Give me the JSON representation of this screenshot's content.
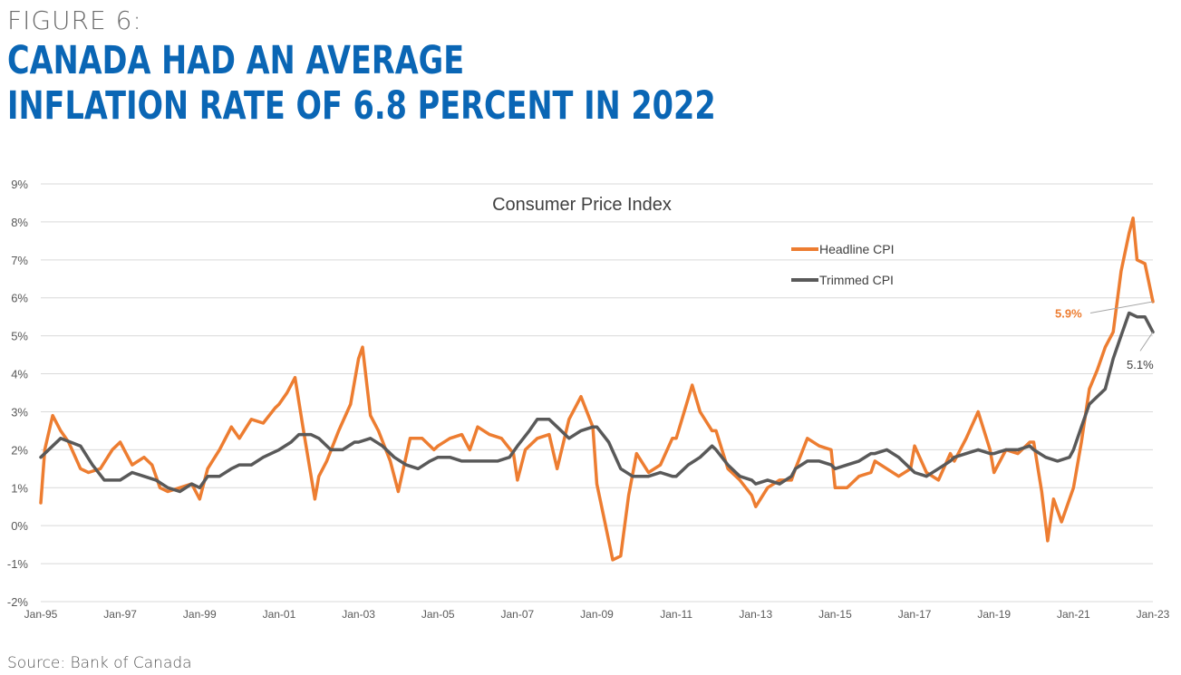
{
  "figure_label": "FIGURE 6:",
  "headline": {
    "line1": "CANADA HAD AN AVERAGE",
    "line2": "INFLATION RATE OF 6.8 PERCENT IN 2022"
  },
  "source": "Source: Bank of Canada",
  "colors": {
    "headline_blue": "#0a66b5",
    "headline_cpi": "#ed7d31",
    "trimmed_cpi": "#595959",
    "grid": "#d9d9d9"
  },
  "chart_data": {
    "type": "line",
    "title": "Consumer Price Index",
    "xlabel": "",
    "ylabel": "",
    "x_range": [
      1995,
      2023
    ],
    "ylim": [
      -2,
      9
    ],
    "y_ticks": [
      -2,
      -1,
      0,
      1,
      2,
      3,
      4,
      5,
      6,
      7,
      8,
      9
    ],
    "y_tick_labels": [
      "-2%",
      "-1%",
      "0%",
      "1%",
      "2%",
      "3%",
      "4%",
      "5%",
      "6%",
      "7%",
      "8%",
      "9%"
    ],
    "x_ticks": [
      1995,
      1997,
      1999,
      2001,
      2003,
      2005,
      2007,
      2009,
      2011,
      2013,
      2015,
      2017,
      2019,
      2021,
      2023
    ],
    "x_tick_labels": [
      "Jan-95",
      "Jan-97",
      "Jan-99",
      "Jan-01",
      "Jan-03",
      "Jan-05",
      "Jan-07",
      "Jan-09",
      "Jan-11",
      "Jan-13",
      "Jan-15",
      "Jan-17",
      "Jan-19",
      "Jan-21",
      "Jan-23"
    ],
    "grid": "horizontal",
    "legend_position": "top-right",
    "series": [
      {
        "name": "Headline CPI",
        "color": "#ed7d31",
        "x": [
          1995.0,
          1995.1,
          1995.3,
          1995.5,
          1995.7,
          1996.0,
          1996.2,
          1996.5,
          1996.8,
          1997.0,
          1997.3,
          1997.6,
          1997.8,
          1998.0,
          1998.2,
          1998.5,
          1998.8,
          1999.0,
          1999.2,
          1999.5,
          1999.8,
          2000.0,
          2000.3,
          2000.6,
          2000.9,
          2001.0,
          2001.2,
          2001.4,
          2001.6,
          2001.9,
          2002.0,
          2002.2,
          2002.5,
          2002.8,
          2003.0,
          2003.1,
          2003.3,
          2003.5,
          2003.8,
          2004.0,
          2004.3,
          2004.6,
          2004.9,
          2005.0,
          2005.3,
          2005.6,
          2005.8,
          2006.0,
          2006.3,
          2006.6,
          2006.9,
          2007.0,
          2007.2,
          2007.5,
          2007.8,
          2008.0,
          2008.3,
          2008.6,
          2008.9,
          2009.0,
          2009.2,
          2009.4,
          2009.6,
          2009.8,
          2010.0,
          2010.3,
          2010.6,
          2010.9,
          2011.0,
          2011.2,
          2011.4,
          2011.6,
          2011.9,
          2012.0,
          2012.3,
          2012.6,
          2012.9,
          2013.0,
          2013.3,
          2013.6,
          2013.9,
          2014.0,
          2014.3,
          2014.6,
          2014.9,
          2015.0,
          2015.3,
          2015.6,
          2015.9,
          2016.0,
          2016.3,
          2016.6,
          2016.9,
          2017.0,
          2017.3,
          2017.6,
          2017.9,
          2018.0,
          2018.3,
          2018.6,
          2018.9,
          2019.0,
          2019.3,
          2019.6,
          2019.9,
          2020.0,
          2020.2,
          2020.35,
          2020.5,
          2020.7,
          2020.9,
          2021.0,
          2021.2,
          2021.4,
          2021.6,
          2021.8,
          2022.0,
          2022.2,
          2022.4,
          2022.5,
          2022.6,
          2022.8,
          2023.0
        ],
        "y": [
          0.6,
          2.0,
          2.9,
          2.5,
          2.2,
          1.5,
          1.4,
          1.5,
          2.0,
          2.2,
          1.6,
          1.8,
          1.6,
          1.0,
          0.9,
          1.0,
          1.1,
          0.7,
          1.5,
          2.0,
          2.6,
          2.3,
          2.8,
          2.7,
          3.1,
          3.2,
          3.5,
          3.9,
          2.6,
          0.7,
          1.3,
          1.7,
          2.5,
          3.2,
          4.4,
          4.7,
          2.9,
          2.5,
          1.7,
          0.9,
          2.3,
          2.3,
          2.0,
          2.1,
          2.3,
          2.4,
          2.0,
          2.6,
          2.4,
          2.3,
          1.9,
          1.2,
          2.0,
          2.3,
          2.4,
          1.5,
          2.8,
          3.4,
          2.6,
          1.1,
          0.1,
          -0.9,
          -0.8,
          0.8,
          1.9,
          1.4,
          1.6,
          2.3,
          2.3,
          3.0,
          3.7,
          3.0,
          2.5,
          2.5,
          1.5,
          1.2,
          0.8,
          0.5,
          1.0,
          1.2,
          1.2,
          1.5,
          2.3,
          2.1,
          2.0,
          1.0,
          1.0,
          1.3,
          1.4,
          1.7,
          1.5,
          1.3,
          1.5,
          2.1,
          1.4,
          1.2,
          1.9,
          1.7,
          2.3,
          3.0,
          2.0,
          1.4,
          2.0,
          1.9,
          2.2,
          2.2,
          0.9,
          -0.4,
          0.7,
          0.1,
          0.7,
          1.0,
          2.2,
          3.6,
          4.1,
          4.7,
          5.1,
          6.7,
          7.7,
          8.1,
          7.0,
          6.9,
          5.9
        ]
      },
      {
        "name": "Trimmed CPI",
        "color": "#595959",
        "x": [
          1995.0,
          1995.3,
          1995.5,
          1996.0,
          1996.3,
          1996.6,
          1997.0,
          1997.3,
          1997.6,
          1997.9,
          1998.2,
          1998.5,
          1998.8,
          1999.0,
          1999.2,
          1999.5,
          1999.8,
          2000.0,
          2000.3,
          2000.6,
          2001.0,
          2001.3,
          2001.5,
          2001.8,
          2002.0,
          2002.3,
          2002.6,
          2002.9,
          2003.0,
          2003.3,
          2003.6,
          2003.9,
          2004.2,
          2004.5,
          2004.8,
          2005.0,
          2005.3,
          2005.6,
          2005.9,
          2006.2,
          2006.5,
          2006.8,
          2007.0,
          2007.3,
          2007.5,
          2007.8,
          2008.0,
          2008.3,
          2008.6,
          2008.9,
          2009.0,
          2009.3,
          2009.6,
          2009.9,
          2010.0,
          2010.3,
          2010.6,
          2010.9,
          2011.0,
          2011.3,
          2011.6,
          2011.9,
          2012.0,
          2012.3,
          2012.6,
          2012.9,
          2013.0,
          2013.3,
          2013.6,
          2013.9,
          2014.0,
          2014.3,
          2014.6,
          2014.9,
          2015.0,
          2015.3,
          2015.6,
          2015.9,
          2016.0,
          2016.3,
          2016.6,
          2016.9,
          2017.0,
          2017.3,
          2017.6,
          2017.9,
          2018.0,
          2018.3,
          2018.6,
          2018.9,
          2019.0,
          2019.3,
          2019.6,
          2019.9,
          2020.0,
          2020.3,
          2020.6,
          2020.9,
          2021.0,
          2021.2,
          2021.4,
          2021.6,
          2021.8,
          2022.0,
          2022.2,
          2022.4,
          2022.6,
          2022.8,
          2023.0
        ],
        "y": [
          1.8,
          2.1,
          2.3,
          2.1,
          1.6,
          1.2,
          1.2,
          1.4,
          1.3,
          1.2,
          1.0,
          0.9,
          1.1,
          1.0,
          1.3,
          1.3,
          1.5,
          1.6,
          1.6,
          1.8,
          2.0,
          2.2,
          2.4,
          2.4,
          2.3,
          2.0,
          2.0,
          2.2,
          2.2,
          2.3,
          2.1,
          1.8,
          1.6,
          1.5,
          1.7,
          1.8,
          1.8,
          1.7,
          1.7,
          1.7,
          1.7,
          1.8,
          2.1,
          2.5,
          2.8,
          2.8,
          2.6,
          2.3,
          2.5,
          2.6,
          2.6,
          2.2,
          1.5,
          1.3,
          1.3,
          1.3,
          1.4,
          1.3,
          1.3,
          1.6,
          1.8,
          2.1,
          2.0,
          1.6,
          1.3,
          1.2,
          1.1,
          1.2,
          1.1,
          1.3,
          1.5,
          1.7,
          1.7,
          1.6,
          1.5,
          1.6,
          1.7,
          1.9,
          1.9,
          2.0,
          1.8,
          1.5,
          1.4,
          1.3,
          1.5,
          1.7,
          1.8,
          1.9,
          2.0,
          1.9,
          1.9,
          2.0,
          2.0,
          2.1,
          2.0,
          1.8,
          1.7,
          1.8,
          2.0,
          2.6,
          3.2,
          3.4,
          3.6,
          4.4,
          5.0,
          5.6,
          5.5,
          5.5,
          5.1
        ]
      }
    ],
    "annotations": [
      {
        "text": "5.9%",
        "series": "Headline CPI",
        "x": 2023.0,
        "y": 5.9
      },
      {
        "text": "5.1%",
        "series": "Trimmed CPI",
        "x": 2023.0,
        "y": 5.1
      }
    ]
  }
}
